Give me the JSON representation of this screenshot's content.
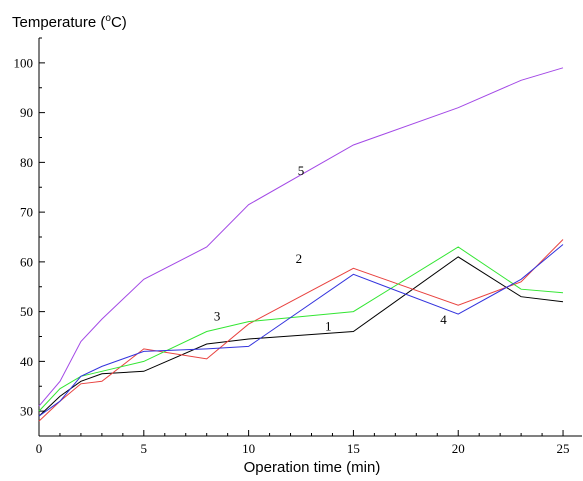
{
  "chart_data": {
    "type": "line",
    "ylabel_prefix": "Temperature (",
    "ylabel_sup": "o",
    "ylabel_suffix": "C)",
    "xlabel": "Operation time (min)",
    "xlim": [
      0,
      26
    ],
    "ylim": [
      25,
      105
    ],
    "x_ticks": [
      0,
      5,
      10,
      15,
      20,
      25
    ],
    "y_ticks": [
      30,
      40,
      50,
      60,
      70,
      80,
      90,
      100
    ],
    "grid": false,
    "series": [
      {
        "name": "1",
        "color": "#000000",
        "x": [
          0,
          1,
          2,
          3,
          5,
          8,
          10,
          15,
          20,
          23,
          25
        ],
        "y": [
          29,
          33,
          36,
          37.5,
          38,
          43.5,
          44.5,
          46,
          61,
          53,
          52
        ],
        "label_at": [
          13.8,
          46.2
        ]
      },
      {
        "name": "2",
        "color": "#e8423f",
        "x": [
          0,
          1,
          2,
          3,
          5,
          8,
          10,
          15,
          20,
          23,
          25
        ],
        "y": [
          28,
          32,
          35.5,
          36,
          42.5,
          40.5,
          47.5,
          58.7,
          51.3,
          56,
          64.5
        ],
        "label_at": [
          12.4,
          59.8
        ]
      },
      {
        "name": "3",
        "color": "#33e633",
        "x": [
          0,
          1,
          2,
          3,
          5,
          8,
          10,
          15,
          20,
          23,
          25
        ],
        "y": [
          30,
          34.5,
          37,
          38,
          40,
          46,
          48,
          50,
          63,
          54.5,
          53.8
        ],
        "label_at": [
          8.5,
          48.2
        ]
      },
      {
        "name": "4",
        "color": "#3333dd",
        "x": [
          0,
          1,
          2,
          3,
          5,
          8,
          10,
          15,
          20,
          23,
          25
        ],
        "y": [
          29,
          32,
          37,
          39,
          42,
          42.5,
          43,
          57.5,
          49.5,
          56.5,
          63.5
        ],
        "label_at": [
          19.3,
          47.5
        ]
      },
      {
        "name": "5",
        "color": "#a349e6",
        "x": [
          0,
          1,
          2,
          3,
          5,
          8,
          10,
          15,
          20,
          23,
          25
        ],
        "y": [
          31,
          36,
          44,
          48.5,
          56.5,
          63,
          71.5,
          83.5,
          91,
          96.5,
          99
        ],
        "label_at": [
          12.5,
          77.5
        ]
      }
    ]
  }
}
